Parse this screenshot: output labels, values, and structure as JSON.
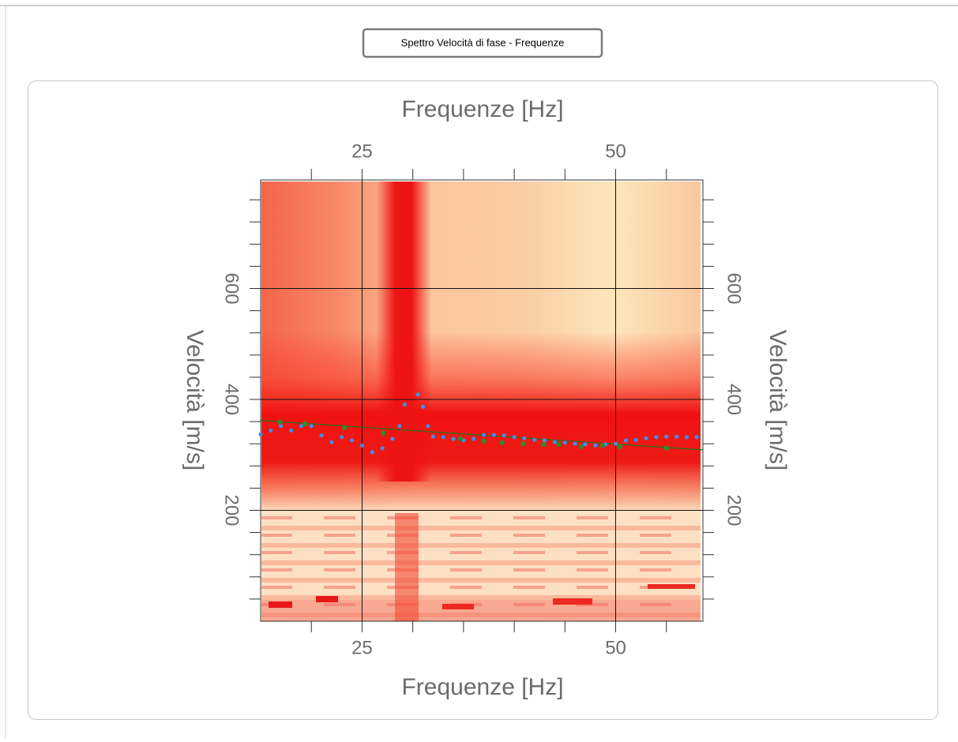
{
  "ui": {
    "button": {
      "label": "Spettro Velocità di fase - Frequenze"
    }
  },
  "chart_data": {
    "type": "scatter",
    "x_label": "Frequenze [Hz]",
    "y_label": "Velocità [m/s]",
    "xlim": [
      15,
      58.6
    ],
    "ylim": [
      0,
      800
    ],
    "xticks": [
      25,
      50
    ],
    "xminor_ticks": [
      20,
      30,
      35,
      40,
      45,
      55
    ],
    "yticks": [
      200,
      400,
      600
    ],
    "yminor_ticks": [
      40,
      80,
      120,
      160,
      240,
      280,
      320,
      360,
      440,
      480,
      520,
      560,
      640,
      680,
      720,
      760
    ],
    "grid": true,
    "series": [
      {
        "mode": "markers",
        "color": "#3f8ee6",
        "x": [
          15,
          16,
          17,
          18,
          19,
          20,
          21,
          22,
          23,
          24,
          25,
          26,
          27,
          28,
          28.7,
          29.2,
          30.5,
          31,
          31.5,
          32,
          33,
          34,
          35,
          36,
          37,
          38,
          39,
          40,
          41,
          42,
          43,
          44,
          45,
          46,
          47,
          48,
          49,
          50,
          51,
          52,
          53,
          54,
          55,
          56,
          57,
          58
        ],
        "values": [
          337,
          344,
          352,
          344,
          352,
          352,
          335,
          323,
          332,
          326,
          317,
          305,
          312,
          329,
          352,
          391,
          409,
          387,
          352,
          333,
          332,
          329,
          326,
          329,
          336,
          336,
          335,
          332,
          330,
          327,
          326,
          323,
          322,
          320,
          319,
          317,
          319,
          320,
          326,
          327,
          330,
          332,
          333,
          333,
          332,
          332
        ]
      },
      {
        "mode": "markers",
        "color": "#2f8a2f",
        "x": [
          16.9,
          19.4,
          23.3,
          27.1,
          34.7,
          37,
          38.8,
          40.9,
          42.9,
          44.4,
          46.6,
          48.7,
          50.4,
          55
        ],
        "values": [
          359,
          356,
          349,
          339,
          329,
          325,
          322,
          320,
          319,
          319,
          315,
          317,
          315,
          312
        ]
      },
      {
        "mode": "line",
        "color": "#2a6e1e",
        "x": [
          15,
          58.6
        ],
        "values": [
          362,
          309
        ]
      }
    ]
  }
}
